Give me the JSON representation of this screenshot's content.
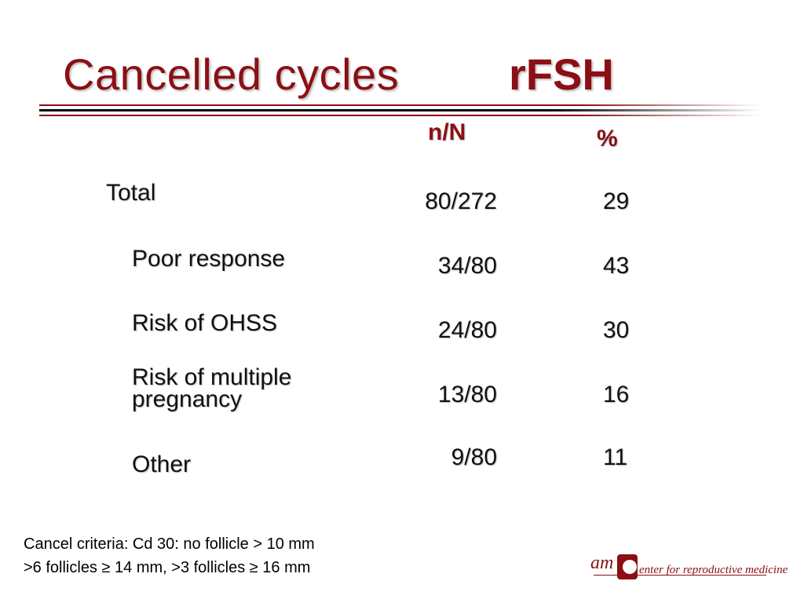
{
  "slide": {
    "title": "Cancelled cycles",
    "title_right": "rFSH"
  },
  "table": {
    "headers": {
      "n": "n/N",
      "pct": "%"
    },
    "rows": [
      {
        "label": "Total",
        "n": "80/272",
        "pct": "29"
      },
      {
        "label": "Poor response",
        "n": "34/80",
        "pct": "43"
      },
      {
        "label": "Risk of OHSS",
        "n": "24/80",
        "pct": "30"
      },
      {
        "label_line1": "Risk of multiple",
        "label_line2": "pregnancy",
        "n": "13/80",
        "pct": "16"
      },
      {
        "label": "Other",
        "n": "9/80",
        "pct": "11"
      }
    ]
  },
  "criteria": {
    "line1": "Cancel criteria: Cd 30: no follicle > 10 mm",
    "line2": ">6 follicles ≥ 14 mm, >3 follicles ≥ 16 mm"
  },
  "logo": {
    "am": "am",
    "text": "enter for reproductive medicine"
  },
  "colors": {
    "accent": "#8b0f14"
  }
}
